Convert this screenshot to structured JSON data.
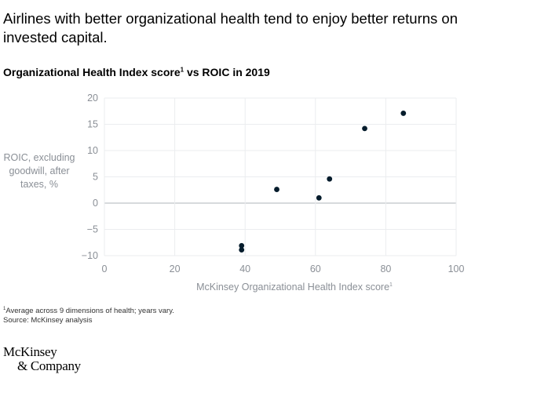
{
  "headline": "Airlines with better organizational health tend to enjoy better returns on invested capital.",
  "subtitle": "Organizational Health Index score",
  "subtitle_sup": "1",
  "subtitle_tail": " vs ROIC in 2019",
  "chart_data": {
    "type": "scatter",
    "xlabel": "McKinsey Organizational Health Index score",
    "xlabel_sup": "1",
    "ylabel": "ROIC, excluding goodwill, after taxes, %",
    "xlim": [
      0,
      100
    ],
    "ylim": [
      -10,
      20
    ],
    "xticks": [
      0,
      20,
      40,
      60,
      80,
      100
    ],
    "yticks": [
      -10,
      -5,
      0,
      5,
      10,
      15,
      20
    ],
    "xtick_labels": [
      "0",
      "20",
      "40",
      "60",
      "80",
      "100"
    ],
    "ytick_labels": [
      "−10",
      "−5",
      "0",
      "5",
      "10",
      "15",
      "20"
    ],
    "grid": true,
    "points": [
      {
        "x": 39,
        "y": -8.1
      },
      {
        "x": 39,
        "y": -8.9
      },
      {
        "x": 49,
        "y": 2.6
      },
      {
        "x": 61,
        "y": 1.0
      },
      {
        "x": 64,
        "y": 4.6
      },
      {
        "x": 74,
        "y": 14.2
      },
      {
        "x": 85,
        "y": 17.1
      }
    ],
    "marker_color": "#051c2c"
  },
  "footnotes": {
    "note_sup": "1",
    "note": "Average across 9 dimensions of health; years vary.",
    "source": "Source: McKinsey analysis"
  },
  "logo": {
    "line1": "McKinsey",
    "line2": "& Company"
  }
}
